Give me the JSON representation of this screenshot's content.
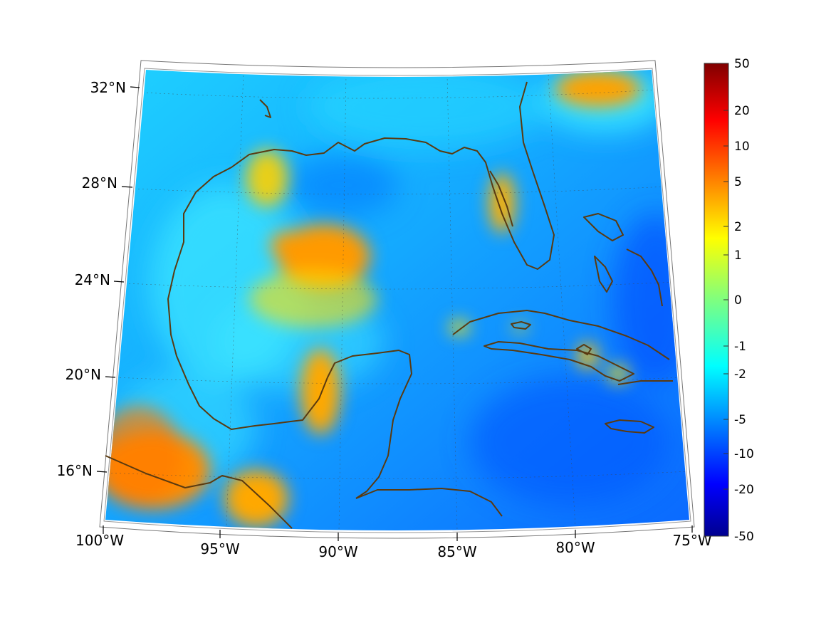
{
  "map": {
    "projection": "lambert-conic",
    "field": "colored scalar field with coastlines",
    "extent": {
      "lon": [
        -100,
        -75
      ],
      "lat": [
        14,
        32
      ]
    },
    "coastline_color": "#5a3a10",
    "lon_labels": [
      "100°W",
      "95°W",
      "90°W",
      "85°W",
      "80°W",
      "75°W"
    ],
    "lat_labels": [
      "32°N",
      "28°N",
      "24°N",
      "20°N",
      "16°N"
    ]
  },
  "colorbar": {
    "colormap": "jet",
    "ticks": [
      "50",
      "20",
      "10",
      "5",
      "2",
      "1",
      "0",
      "-1",
      "-2",
      "-5",
      "-10",
      "-20",
      "-50"
    ]
  }
}
